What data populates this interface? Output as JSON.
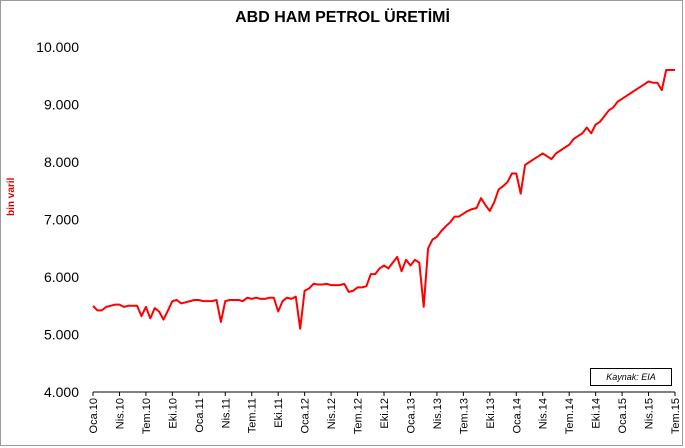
{
  "chart_data": {
    "type": "line",
    "title": "ABD HAM PETROL ÜRETİMİ",
    "ylabel": "bin varil",
    "xlabel": "",
    "ylim": [
      4000,
      10000
    ],
    "yticks": [
      "4.000",
      "5.000",
      "6.000",
      "7.000",
      "8.000",
      "9.000",
      "10.000"
    ],
    "yticks_values": [
      4000,
      5000,
      6000,
      7000,
      8000,
      9000,
      10000
    ],
    "xticks": [
      "Oca.10",
      "Nis.10",
      "Tem.10",
      "Eki.10",
      "Oca.11",
      "Nis.11",
      "Tem.11",
      "Eki.11",
      "Oca.12",
      "Nis.12",
      "Tem.12",
      "Eki.12",
      "Oca.13",
      "Nis.13",
      "Tem.13",
      "Eki.13",
      "Oca.14",
      "Nis.14",
      "Tem.14",
      "Eki.14",
      "Oca.15",
      "Nis.15",
      "Tem.15"
    ],
    "x_start": "2010-01",
    "x_end": "2015-07",
    "series_color": "#ff0000",
    "grid": false,
    "source_note": "Kaynak: EIA",
    "series": [
      {
        "x_month_index": [
          0,
          0.5,
          1,
          1.5,
          2,
          2.5,
          3,
          3.5,
          4,
          4.5,
          5,
          5.5,
          6,
          6.5,
          7,
          7.5,
          8,
          8.5,
          9,
          9.5,
          10,
          10.5,
          11,
          11.5,
          12,
          12.5,
          13,
          13.5,
          14,
          14.5,
          15,
          15.5,
          16,
          16.5,
          17,
          17.5,
          18,
          18.5,
          19,
          19.5,
          20,
          20.5,
          21,
          21.5,
          22,
          22.5,
          23,
          23.5,
          24,
          24.5,
          25,
          25.5,
          26,
          26.5,
          27,
          27.5,
          28,
          28.5,
          29,
          29.5,
          30,
          30.5,
          31,
          31.5,
          32,
          32.5,
          33,
          33.5,
          34,
          34.5,
          35,
          35.5,
          36,
          36.5,
          37,
          37.5,
          38,
          38.5,
          39,
          39.5,
          40,
          40.5,
          41,
          41.5,
          42,
          42.5,
          43,
          43.5,
          44,
          44.5,
          45,
          45.5,
          46,
          46.5,
          47,
          47.5,
          48,
          48.5,
          49,
          49.5,
          50,
          50.5,
          51,
          51.5,
          52,
          52.5,
          53,
          53.5,
          54,
          54.5,
          55,
          55.5,
          56,
          56.5,
          57,
          57.5,
          58,
          58.5,
          59,
          59.5,
          60,
          60.5,
          61,
          61.5,
          62,
          62.5,
          63,
          63.5,
          64,
          64.5,
          65,
          65.5,
          66
        ],
        "values": [
          5500,
          5420,
          5420,
          5480,
          5500,
          5520,
          5520,
          5480,
          5500,
          5500,
          5500,
          5320,
          5480,
          5280,
          5460,
          5400,
          5260,
          5420,
          5580,
          5600,
          5540,
          5560,
          5580,
          5600,
          5600,
          5580,
          5580,
          5580,
          5600,
          5220,
          5580,
          5600,
          5600,
          5600,
          5580,
          5640,
          5620,
          5640,
          5620,
          5620,
          5640,
          5640,
          5400,
          5580,
          5640,
          5620,
          5660,
          5100,
          5760,
          5800,
          5880,
          5870,
          5870,
          5880,
          5860,
          5860,
          5860,
          5880,
          5740,
          5760,
          5820,
          5820,
          5840,
          6050,
          6050,
          6150,
          6200,
          6150,
          6250,
          6350,
          6100,
          6300,
          6200,
          6300,
          6250,
          5480,
          6500,
          6650,
          6700,
          6800,
          6880,
          6950,
          7050,
          7050,
          7100,
          7150,
          7180,
          7200,
          7370,
          7250,
          7150,
          7300,
          7520,
          7580,
          7650,
          7800,
          7800,
          7450,
          7950,
          8000,
          8050,
          8100,
          8150,
          8100,
          8050,
          8150,
          8200,
          8250,
          8300,
          8400,
          8450,
          8500,
          8600,
          8500,
          8650,
          8700,
          8800,
          8900,
          8950,
          9050,
          9100,
          9150,
          9200,
          9250,
          9300,
          9350,
          9400,
          9380,
          9380,
          9250,
          9600,
          9600,
          9600
        ]
      }
    ]
  }
}
